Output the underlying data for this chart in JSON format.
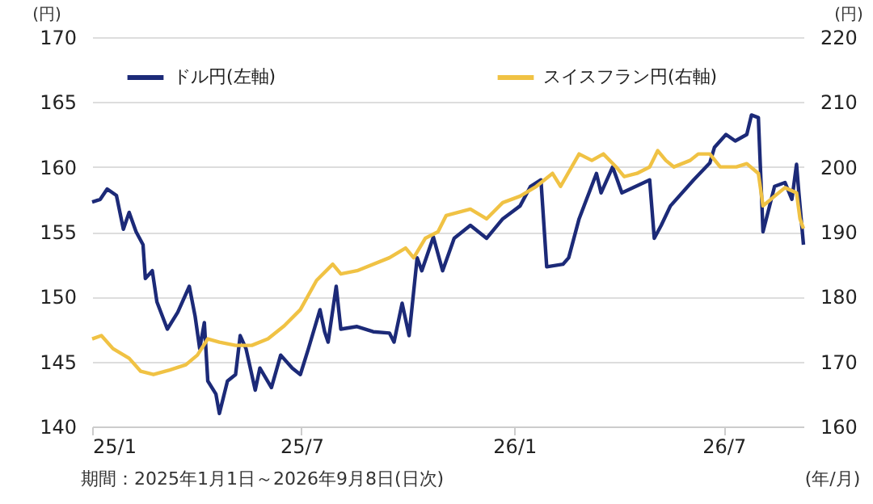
{
  "chart_data": {
    "type": "line",
    "xlabel": "(年/月)",
    "ylabel": "(円)",
    "y2label": "(円)",
    "annotations": [
      "期間：2025年1月1日～2026年9月8日(日次)"
    ],
    "xlim": [
      "2025-01-01",
      "2026-09-08"
    ],
    "xticks": [
      {
        "value": "2025-01-01",
        "label": "25/1"
      },
      {
        "value": "2025-07-01",
        "label": "25/7"
      },
      {
        "value": "2026-01-01",
        "label": "26/1"
      },
      {
        "value": "2026-07-01",
        "label": "26/7"
      }
    ],
    "ylim": [
      140,
      170
    ],
    "yticks": [
      140,
      145,
      150,
      155,
      160,
      165,
      170
    ],
    "y2lim": [
      160,
      220
    ],
    "y2ticks": [
      160,
      170,
      180,
      190,
      200,
      210,
      220
    ],
    "grid": "y",
    "legend": "top",
    "line_style": "solid",
    "marker": "none",
    "series": [
      {
        "name": "ドル円(左軸)",
        "color": "#1c2a78",
        "axis": "y",
        "x": [
          "2025-01-01",
          "2025-01-08",
          "2025-01-14",
          "2025-01-22",
          "2025-01-28",
          "2025-02-02",
          "2025-02-08",
          "2025-02-14",
          "2025-02-16",
          "2025-02-22",
          "2025-02-26",
          "2025-03-07",
          "2025-03-16",
          "2025-03-26",
          "2025-03-31",
          "2025-04-04",
          "2025-04-08",
          "2025-04-11",
          "2025-04-18",
          "2025-04-21",
          "2025-04-28",
          "2025-05-05",
          "2025-05-09",
          "2025-05-14",
          "2025-05-22",
          "2025-05-26",
          "2025-06-05",
          "2025-06-13",
          "2025-06-23",
          "2025-06-30",
          "2025-07-07",
          "2025-07-17",
          "2025-07-21",
          "2025-07-24",
          "2025-07-31",
          "2025-08-04",
          "2025-08-18",
          "2025-09-01",
          "2025-09-15",
          "2025-09-19",
          "2025-09-26",
          "2025-10-02",
          "2025-10-09",
          "2025-10-13",
          "2025-10-23",
          "2025-10-31",
          "2025-11-10",
          "2025-11-24",
          "2025-12-08",
          "2025-12-22",
          "2026-01-06",
          "2026-01-15",
          "2026-01-24",
          "2026-01-29",
          "2026-02-12",
          "2026-02-17",
          "2026-02-26",
          "2026-03-13",
          "2026-03-17",
          "2026-03-27",
          "2026-04-04",
          "2026-04-28",
          "2026-05-02",
          "2026-05-08",
          "2026-05-16",
          "2026-06-05",
          "2026-06-19",
          "2026-06-23",
          "2026-07-03",
          "2026-07-11",
          "2026-07-21",
          "2026-07-25",
          "2026-07-31",
          "2026-08-04",
          "2026-08-14",
          "2026-08-23",
          "2026-08-29",
          "2026-09-02",
          "2026-09-04",
          "2026-09-06",
          "2026-09-08"
        ],
        "values": [
          157.3,
          157.5,
          158.3,
          157.8,
          155.2,
          156.5,
          155,
          154,
          151.4,
          152,
          149.6,
          147.5,
          148.8,
          150.8,
          148.5,
          146,
          148,
          143.5,
          142.5,
          141,
          143.5,
          144,
          147,
          146,
          142.8,
          144.5,
          143,
          145.5,
          144.5,
          144,
          146,
          149,
          147.3,
          146.5,
          150.8,
          147.5,
          147.7,
          147.3,
          147.2,
          146.5,
          149.5,
          147,
          153,
          152,
          154.6,
          152,
          154.5,
          155.5,
          154.5,
          156,
          157,
          158.5,
          159,
          152.3,
          152.5,
          153,
          156,
          159.5,
          158,
          160,
          158,
          159,
          154.5,
          155.5,
          157,
          159,
          160.3,
          161.5,
          162.5,
          162,
          162.5,
          164,
          163.8,
          155,
          158.5,
          158.8,
          157.5,
          160.2,
          158,
          156,
          154
        ]
      },
      {
        "name": "スイスフラン円(右軸)",
        "color": "#f0c244",
        "axis": "y2",
        "x": [
          "2025-01-01",
          "2025-01-09",
          "2025-01-19",
          "2025-02-02",
          "2025-02-12",
          "2025-02-23",
          "2025-03-09",
          "2025-03-23",
          "2025-04-02",
          "2025-04-11",
          "2025-04-21",
          "2025-05-05",
          "2025-05-19",
          "2025-06-02",
          "2025-06-16",
          "2025-06-30",
          "2025-07-14",
          "2025-07-28",
          "2025-08-04",
          "2025-08-18",
          "2025-09-15",
          "2025-09-29",
          "2025-10-06",
          "2025-10-16",
          "2025-10-27",
          "2025-11-03",
          "2025-11-24",
          "2025-12-08",
          "2025-12-22",
          "2026-01-06",
          "2026-01-20",
          "2026-02-03",
          "2026-02-10",
          "2026-02-26",
          "2026-03-09",
          "2026-03-19",
          "2026-03-30",
          "2026-04-06",
          "2026-04-17",
          "2026-04-28",
          "2026-05-05",
          "2026-05-12",
          "2026-05-19",
          "2026-06-02",
          "2026-06-09",
          "2026-06-19",
          "2026-06-28",
          "2026-07-12",
          "2026-07-21",
          "2026-07-31",
          "2026-08-04",
          "2026-08-14",
          "2026-08-23",
          "2026-09-02",
          "2026-09-05",
          "2026-09-08"
        ],
        "values": [
          173.5,
          174,
          172,
          170.5,
          168.5,
          168,
          168.7,
          169.5,
          171,
          173.5,
          173,
          172.5,
          172.5,
          173.5,
          175.5,
          178,
          182.5,
          185,
          183.5,
          184,
          186,
          187.5,
          186,
          189,
          190,
          192.5,
          193.5,
          192,
          194.5,
          195.5,
          197,
          199,
          197,
          202,
          201,
          202,
          200,
          198.5,
          199,
          200,
          202.5,
          201,
          200,
          201,
          202,
          202,
          200,
          200,
          200.5,
          199,
          194,
          195.5,
          196.8,
          196,
          192,
          190.5
        ]
      }
    ]
  }
}
